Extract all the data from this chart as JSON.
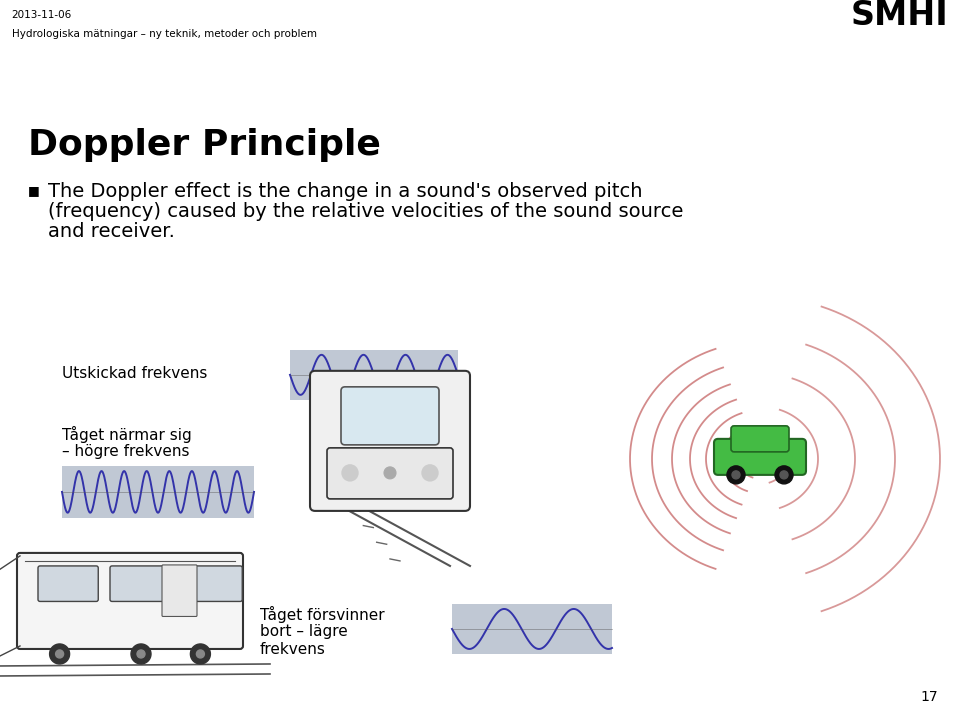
{
  "title": "Doppler Principle",
  "bullet_text_line1": "The Doppler effect is the change in a sound's observed pitch",
  "bullet_text_line2": "(frequency) caused by the relative velocities of the sound source",
  "bullet_text_line3": "and receiver.",
  "header_date": "2013-11-06",
  "header_subtitle": "Hydrologiska mätningar – ny teknik, metoder och problem",
  "header_logo": "SMHI",
  "label1": "Utskickad frekvens",
  "label2_line1": "Tåget närmar sig",
  "label2_line2": "– högre frekvens",
  "label3_line1": "Tåget försvinner",
  "label3_line2": "bort – lägre",
  "label3_line3": "frekvens",
  "page_number": "17",
  "bg_color": "#ffffff",
  "header_bg": "#000000",
  "wave_bg_color": "#c0c8d4",
  "wave_color": "#3333aa",
  "title_fontsize": 26,
  "bullet_fontsize": 14,
  "label_fontsize": 11,
  "sound_arc_color": "#cc7777",
  "car_color": "#44bb44"
}
